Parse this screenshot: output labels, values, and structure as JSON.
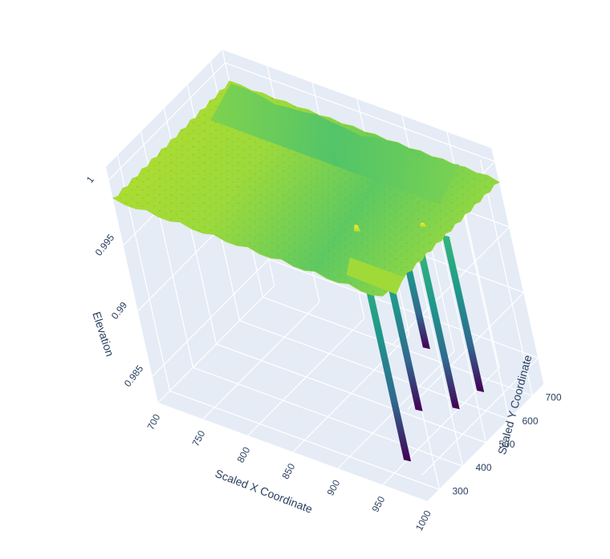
{
  "chart_data": {
    "type": "surface",
    "title": "",
    "colorscale": "Viridis",
    "colors": {
      "pane": "#e5ecf6",
      "grid": "#ffffff",
      "text": "#2a3f5f"
    },
    "axes": {
      "x": {
        "title": "Scaled X Coordinate",
        "range": [
          700,
          1000
        ],
        "ticks": [
          700,
          750,
          800,
          850,
          900,
          950,
          1000
        ]
      },
      "y": {
        "title": "Scaled Y Coordinate",
        "range": [
          250,
          750
        ],
        "ticks": [
          300,
          400,
          500,
          600,
          700
        ]
      },
      "z": {
        "title": "Elevation",
        "range": [
          0.983,
          1.001
        ],
        "ticks": [
          0.985,
          0.99,
          0.995,
          1
        ],
        "tick_labels": [
          "0.985",
          "0.99",
          "0.995",
          "1"
        ]
      }
    },
    "surface_summary": {
      "plateau_elevation": 0.9985,
      "ridge_elevation": 0.9993,
      "spike_max_elevation": 0.999,
      "pit_min_elevation": 0.9833,
      "pits": [
        {
          "x": 955,
          "y": 340,
          "min_z": 0.9833
        },
        {
          "x": 955,
          "y": 420,
          "min_z": 0.9857
        },
        {
          "x": 960,
          "y": 480,
          "min_z": 0.9895
        },
        {
          "x": 990,
          "y": 450,
          "min_z": 0.9862
        },
        {
          "x": 1000,
          "y": 520,
          "min_z": 0.9865
        }
      ],
      "spikes": [
        {
          "x": 925,
          "y": 430,
          "z": 0.999
        },
        {
          "x": 975,
          "y": 520,
          "z": 0.9988
        }
      ]
    },
    "grid": true,
    "legend": "none"
  }
}
